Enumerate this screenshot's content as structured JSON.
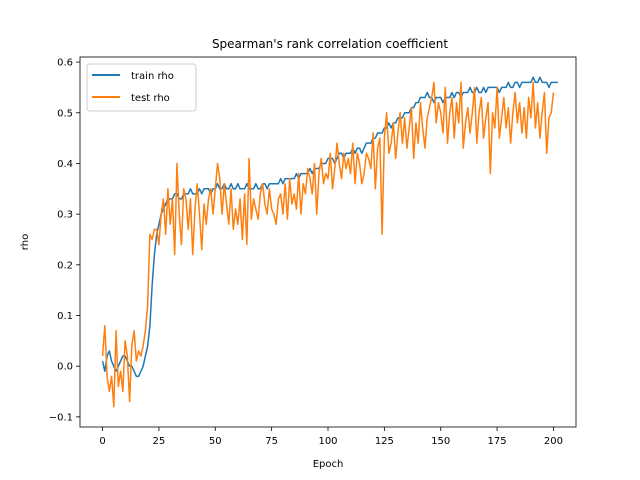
{
  "chart_data": {
    "type": "line",
    "title": "Spearman's rank correlation coefficient",
    "xlabel": "Epoch",
    "ylabel": "rho",
    "xlim": [
      -10,
      210
    ],
    "ylim": [
      -0.12,
      0.61
    ],
    "xticks": [
      0,
      25,
      50,
      75,
      100,
      125,
      150,
      175,
      200
    ],
    "yticks": [
      -0.1,
      0.0,
      0.1,
      0.2,
      0.3,
      0.4,
      0.5,
      0.6
    ],
    "ytick_labels": [
      "−0.1",
      "0.0",
      "0.1",
      "0.2",
      "0.3",
      "0.4",
      "0.5",
      "0.6"
    ],
    "grid": false,
    "legend_position": "top-left",
    "colors": {
      "train": "#1f77b4",
      "test": "#ff7f0e"
    },
    "series": [
      {
        "name": "train rho",
        "color": "#1f77b4",
        "x_start": 0,
        "x_step": 1,
        "values": [
          0.01,
          -0.01,
          0.02,
          0.03,
          0.01,
          0.0,
          -0.01,
          0.0,
          0.01,
          0.02,
          0.02,
          0.01,
          0.0,
          0.0,
          -0.01,
          -0.02,
          -0.02,
          -0.01,
          0.0,
          0.02,
          0.04,
          0.08,
          0.16,
          0.22,
          0.26,
          0.28,
          0.3,
          0.31,
          0.32,
          0.33,
          0.33,
          0.33,
          0.34,
          0.34,
          0.33,
          0.33,
          0.34,
          0.34,
          0.34,
          0.35,
          0.34,
          0.34,
          0.34,
          0.35,
          0.34,
          0.35,
          0.35,
          0.35,
          0.34,
          0.35,
          0.35,
          0.36,
          0.35,
          0.35,
          0.36,
          0.35,
          0.35,
          0.36,
          0.35,
          0.35,
          0.36,
          0.35,
          0.35,
          0.35,
          0.36,
          0.35,
          0.35,
          0.35,
          0.36,
          0.35,
          0.35,
          0.36,
          0.36,
          0.35,
          0.36,
          0.36,
          0.36,
          0.36,
          0.36,
          0.37,
          0.36,
          0.37,
          0.37,
          0.37,
          0.37,
          0.37,
          0.38,
          0.37,
          0.38,
          0.38,
          0.38,
          0.38,
          0.39,
          0.38,
          0.39,
          0.39,
          0.39,
          0.4,
          0.4,
          0.4,
          0.41,
          0.41,
          0.41,
          0.4,
          0.41,
          0.42,
          0.42,
          0.41,
          0.42,
          0.42,
          0.42,
          0.43,
          0.42,
          0.43,
          0.43,
          0.42,
          0.43,
          0.44,
          0.44,
          0.44,
          0.45,
          0.45,
          0.46,
          0.46,
          0.46,
          0.47,
          0.47,
          0.48,
          0.47,
          0.48,
          0.48,
          0.49,
          0.49,
          0.49,
          0.5,
          0.5,
          0.5,
          0.51,
          0.51,
          0.52,
          0.52,
          0.53,
          0.53,
          0.53,
          0.54,
          0.53,
          0.53,
          0.52,
          0.53,
          0.53,
          0.53,
          0.52,
          0.53,
          0.53,
          0.53,
          0.54,
          0.53,
          0.54,
          0.54,
          0.53,
          0.54,
          0.54,
          0.54,
          0.55,
          0.54,
          0.54,
          0.55,
          0.54,
          0.54,
          0.55,
          0.54,
          0.55,
          0.55,
          0.55,
          0.55,
          0.55,
          0.54,
          0.55,
          0.55,
          0.55,
          0.56,
          0.55,
          0.55,
          0.56,
          0.56,
          0.55,
          0.56,
          0.56,
          0.56,
          0.56,
          0.56,
          0.57,
          0.56,
          0.56,
          0.57,
          0.56,
          0.56,
          0.56,
          0.55,
          0.56,
          0.56,
          0.56,
          0.56
        ]
      },
      {
        "name": "test rho",
        "color": "#ff7f0e",
        "x_start": 0,
        "x_step": 1,
        "values": [
          0.02,
          0.08,
          -0.02,
          -0.05,
          -0.02,
          -0.08,
          0.07,
          -0.04,
          -0.01,
          -0.05,
          0.05,
          0.02,
          -0.07,
          0.04,
          0.07,
          0.01,
          0.03,
          0.02,
          0.04,
          0.07,
          0.12,
          0.26,
          0.25,
          0.27,
          0.27,
          0.24,
          0.3,
          0.33,
          0.26,
          0.35,
          0.28,
          0.33,
          0.22,
          0.4,
          0.3,
          0.24,
          0.35,
          0.33,
          0.27,
          0.33,
          0.22,
          0.31,
          0.36,
          0.3,
          0.23,
          0.32,
          0.28,
          0.33,
          0.35,
          0.3,
          0.35,
          0.4,
          0.37,
          0.3,
          0.36,
          0.32,
          0.28,
          0.35,
          0.27,
          0.31,
          0.28,
          0.33,
          0.25,
          0.34,
          0.24,
          0.41,
          0.29,
          0.33,
          0.31,
          0.29,
          0.34,
          0.36,
          0.32,
          0.3,
          0.35,
          0.31,
          0.3,
          0.28,
          0.33,
          0.34,
          0.3,
          0.36,
          0.29,
          0.37,
          0.32,
          0.34,
          0.31,
          0.38,
          0.3,
          0.36,
          0.34,
          0.39,
          0.37,
          0.34,
          0.4,
          0.3,
          0.38,
          0.41,
          0.36,
          0.38,
          0.37,
          0.42,
          0.35,
          0.39,
          0.44,
          0.4,
          0.37,
          0.42,
          0.39,
          0.41,
          0.38,
          0.44,
          0.36,
          0.42,
          0.4,
          0.36,
          0.38,
          0.42,
          0.41,
          0.39,
          0.46,
          0.35,
          0.43,
          0.45,
          0.26,
          0.45,
          0.5,
          0.42,
          0.44,
          0.48,
          0.41,
          0.46,
          0.5,
          0.44,
          0.49,
          0.43,
          0.47,
          0.51,
          0.41,
          0.48,
          0.44,
          0.52,
          0.47,
          0.43,
          0.49,
          0.51,
          0.53,
          0.56,
          0.48,
          0.52,
          0.5,
          0.46,
          0.55,
          0.44,
          0.5,
          0.53,
          0.45,
          0.52,
          0.48,
          0.56,
          0.43,
          0.48,
          0.51,
          0.46,
          0.5,
          0.55,
          0.44,
          0.5,
          0.53,
          0.45,
          0.49,
          0.52,
          0.38,
          0.5,
          0.47,
          0.55,
          0.45,
          0.49,
          0.53,
          0.47,
          0.51,
          0.44,
          0.5,
          0.54,
          0.48,
          0.52,
          0.46,
          0.51,
          0.45,
          0.53,
          0.49,
          0.56,
          0.47,
          0.52,
          0.45,
          0.5,
          0.54,
          0.42,
          0.49,
          0.5,
          0.54
        ]
      }
    ]
  }
}
